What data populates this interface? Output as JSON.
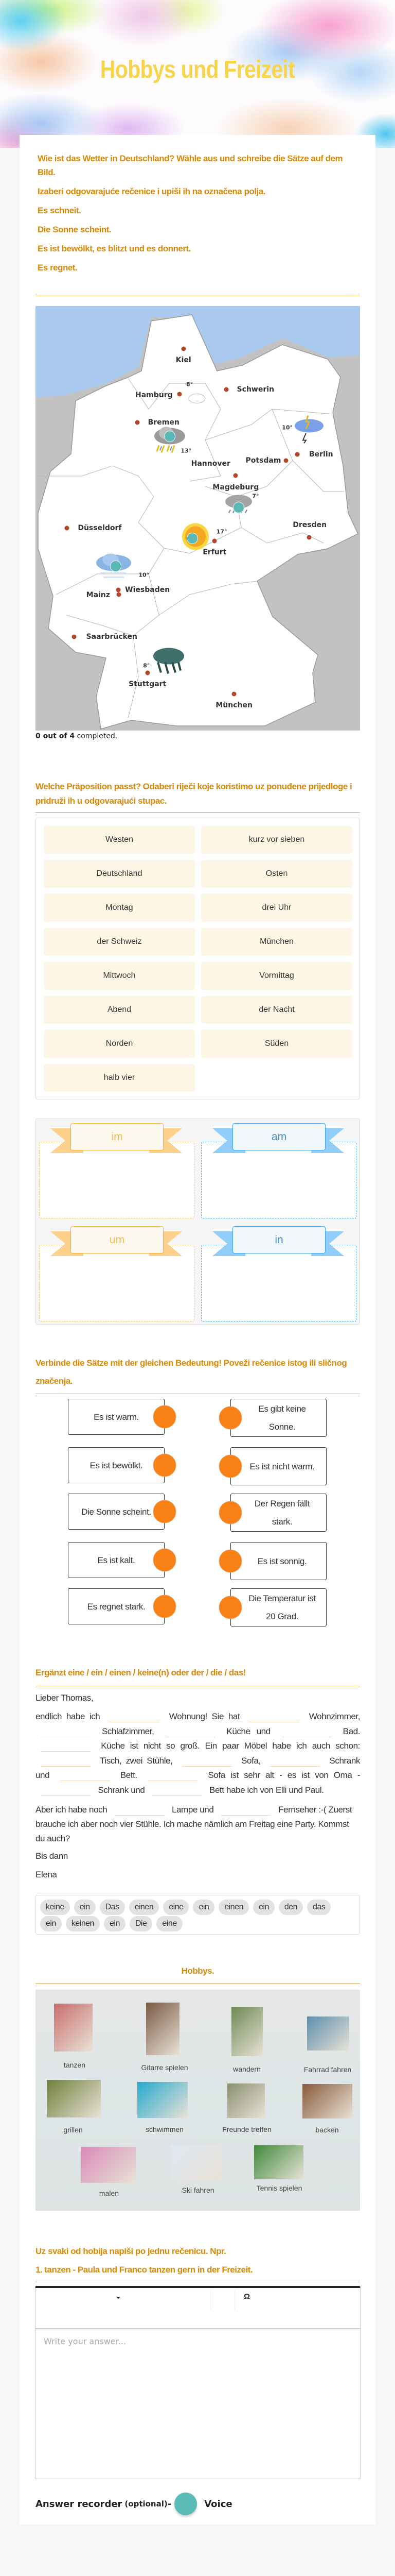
{
  "header": {
    "title": "Hobbys und Freizeit"
  },
  "weather": {
    "instructions": [
      "Wie ist das Wetter in Deutschland?   Wähle aus und schreibe die Sätze auf dem Bild.",
      "Izaberi odgovarajuće rečenice i upiši ih na označena polja.",
      "Es schneit.",
      "Die Sonne scheint.",
      "Es ist bewölkt, es blitzt und es donnert.",
      "Es regnet."
    ],
    "map": {
      "cities": [
        "Kiel",
        "Hamburg",
        "Schwerin",
        "Bremen",
        "Hannover",
        "Potsdam",
        "Berlin",
        "Magdeburg",
        "Dresden",
        "Düsseldorf",
        "Erfurt",
        "Mainz",
        "Wiesbaden",
        "Saarbrücken",
        "Stuttgart",
        "München"
      ],
      "temperatures": [
        "8°",
        "13°",
        "10°",
        "7°",
        "17°",
        "10°",
        "8°"
      ],
      "answer_spots": 4
    },
    "progress": {
      "count": "0 out of 4",
      "suffix": " completed."
    }
  },
  "prepositions": {
    "heading": "Welche Präposition passt? Odaberi riječi koje koristimo uz ponuđene prijedloge i pridruži ih u odgovarajući stupac.",
    "words": [
      "Westen",
      "kurz vor sieben",
      "Deutschland",
      "Osten",
      "Montag",
      "drei Uhr",
      "der Schweiz",
      "München",
      "Mittwoch",
      "Vormittag",
      "Abend",
      "der Nacht",
      "Norden",
      "Süden",
      "halb vier"
    ],
    "bins": [
      {
        "label": "im",
        "color": "#fbb03b"
      },
      {
        "label": "am",
        "color": "#42a5f5"
      },
      {
        "label": "um",
        "color": "#fbb03b"
      },
      {
        "label": "in",
        "color": "#42a5f5"
      }
    ]
  },
  "matching": {
    "heading": "Verbinde die Sätze mit der gleichen Bedeutung! Poveži rečenice istog ili sličnog značenja.",
    "left": [
      "Es ist warm.",
      "Es ist bewölkt.",
      "Die Sonne scheint.",
      "Es ist kalt.",
      "Es regnet stark."
    ],
    "right": [
      "Es gibt keine Sonne.",
      "Es ist nicht warm.",
      "Der Regen fällt stark.",
      "Es ist sonnig.",
      "Die Temperatur ist 20 Grad."
    ],
    "dot_color": "#fa8116"
  },
  "cloze": {
    "heading": "Ergänzt eine / ein / einen / keine(n) oder der / die / das!",
    "greeting": "Lieber Thomas,",
    "paragraph1": [
      {
        "t": "endlich habe ich"
      },
      {
        "blank": true
      },
      {
        "t": "Wohnung! Sie hat"
      },
      {
        "blank": true
      },
      {
        "t": "Wohnzimmer,"
      },
      {
        "blank": true
      },
      {
        "t": "Schlafzimmer,"
      },
      {
        "blank": true
      },
      {
        "t": "Küche und"
      },
      {
        "blank": true
      },
      {
        "t": "Bad."
      },
      {
        "blank": true
      },
      {
        "t": "Küche ist nicht so groß. Ein paar Möbel habe ich auch schon:"
      },
      {
        "blank": true
      },
      {
        "t": "Tisch, zwei Stühle,"
      },
      {
        "blank": true
      },
      {
        "t": "Sofa,"
      },
      {
        "blank": true
      },
      {
        "t": "Schrank und"
      },
      {
        "blank": true
      },
      {
        "t": "Bett."
      },
      {
        "blank": true
      },
      {
        "t": "Sofa ist sehr alt - es ist von Oma -"
      },
      {
        "blank": true
      },
      {
        "t": "Schrank und"
      },
      {
        "blank": true
      },
      {
        "t": "Bett habe ich von Elli und Paul."
      }
    ],
    "paragraph2": [
      {
        "t": "Aber ich habe noch"
      },
      {
        "blank": true
      },
      {
        "t": "Lampe und"
      },
      {
        "blank": true
      },
      {
        "t": "Fernseher :-( Zuerst brauche ich aber noch vier Stühle. Ich mache nämlich am Freitag eine Party. Kommst du auch?"
      }
    ],
    "closing": "Bis dann",
    "signature": "Elena",
    "word_bank": [
      "keine",
      "ein",
      "Das",
      "einen",
      "eine",
      "ein",
      "einen",
      "ein",
      "den",
      "das",
      "ein",
      "keinen",
      "ein",
      "Die",
      "eine"
    ]
  },
  "hobbies": {
    "heading": "Hobbys.",
    "labels": [
      "tanzen",
      "Gitarre spielen",
      "wandern",
      "Fahrrad fahren",
      "grillen",
      "schwimmen",
      "Freunde treffen",
      "backen",
      "malen",
      "Ski fahren",
      "Tennis spielen"
    ]
  },
  "writing": {
    "heading_lines": [
      "Uz svaki od hobija napiši po jednu rečenicu. Npr.",
      "1. tanzen - Paula und Franco tanzen gern in der Freizeit."
    ],
    "toolbar": {
      "dropdown_icon": "caret-down-icon",
      "special_chars": "Ω"
    },
    "placeholder": "Write your answer...",
    "recorder": {
      "label": "Answer recorder",
      "optional": "(optional)",
      "dash": " -",
      "voice": "Voice",
      "color": "#5bbcb6"
    }
  }
}
